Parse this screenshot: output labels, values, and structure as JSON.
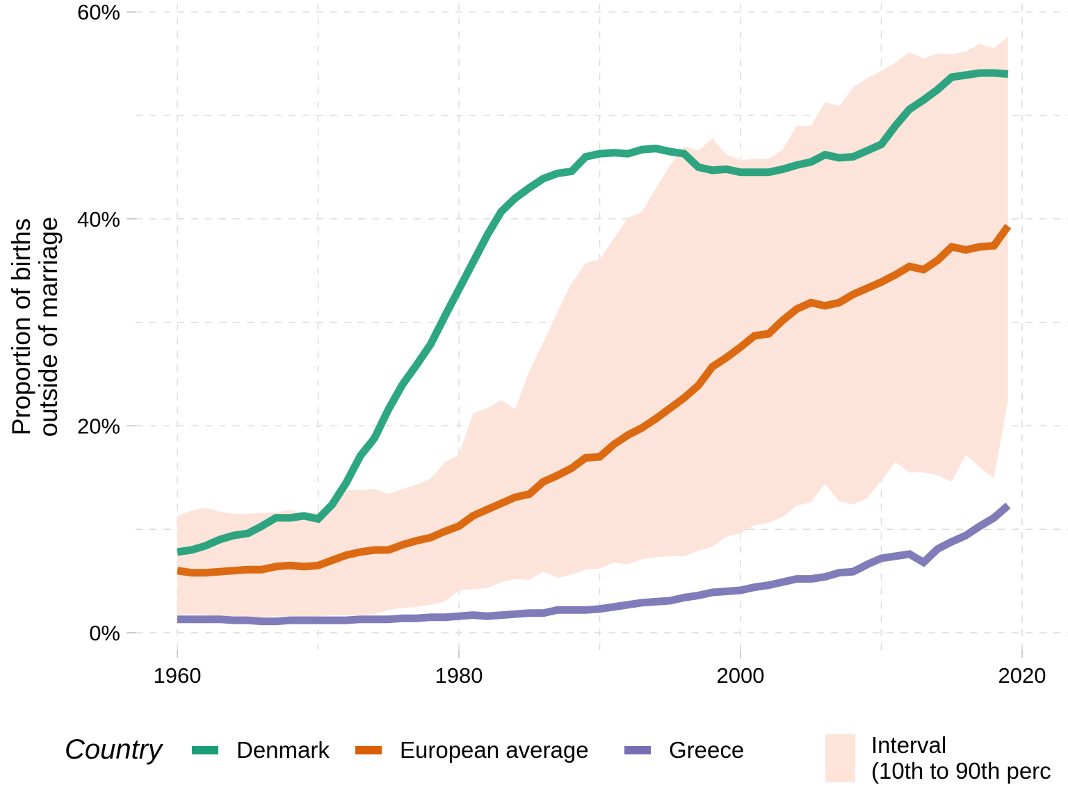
{
  "chart_data": {
    "type": "line",
    "title": "",
    "xlabel": "",
    "ylabel": "Proportion of births\noutside of marriage",
    "ylabel_lines": [
      "Proportion of births",
      "outside of marriage"
    ],
    "xlim": [
      1956,
      2023
    ],
    "ylim": [
      -2.5,
      60
    ],
    "x_ticks": [
      1960,
      1980,
      2000,
      2020
    ],
    "x_tick_labels": [
      "1960",
      "1980",
      "2000",
      "2020"
    ],
    "x_minor_gridlines": [
      1970,
      1990,
      2010
    ],
    "y_ticks": [
      0,
      20,
      40,
      60
    ],
    "y_tick_labels": [
      "0%",
      "20%",
      "40%",
      "60%"
    ],
    "y_minor_gridlines": [
      10,
      30,
      50
    ],
    "grid": true,
    "legend_placement": "bottom",
    "legend_title": "Country",
    "x": [
      1960,
      1961,
      1962,
      1963,
      1964,
      1965,
      1966,
      1967,
      1968,
      1969,
      1970,
      1971,
      1972,
      1973,
      1974,
      1975,
      1976,
      1977,
      1978,
      1979,
      1980,
      1981,
      1982,
      1983,
      1984,
      1985,
      1986,
      1987,
      1988,
      1989,
      1990,
      1991,
      1992,
      1993,
      1994,
      1995,
      1996,
      1997,
      1998,
      1999,
      2000,
      2001,
      2002,
      2003,
      2004,
      2005,
      2006,
      2007,
      2008,
      2009,
      2010,
      2011,
      2012,
      2013,
      2014,
      2015,
      2016,
      2017,
      2018,
      2019
    ],
    "series": [
      {
        "name": "Denmark",
        "color": "#1b9e77",
        "values": [
          7.8,
          8.0,
          8.4,
          9.0,
          9.4,
          9.6,
          10.3,
          11.1,
          11.1,
          11.3,
          11.0,
          12.4,
          14.5,
          17.1,
          18.8,
          21.6,
          24.0,
          25.9,
          27.9,
          30.6,
          33.2,
          35.8,
          38.4,
          40.7,
          42.0,
          43.0,
          43.9,
          44.4,
          44.6,
          46.0,
          46.3,
          46.4,
          46.3,
          46.7,
          46.8,
          46.5,
          46.3,
          45.0,
          44.7,
          44.8,
          44.5,
          44.5,
          44.5,
          44.8,
          45.2,
          45.5,
          46.2,
          45.9,
          46.0,
          46.6,
          47.2,
          49.0,
          50.6,
          51.5,
          52.5,
          53.7,
          53.9,
          54.1,
          54.1,
          54.0
        ]
      },
      {
        "name": "European average",
        "color": "#d95f02",
        "values": [
          6.0,
          5.8,
          5.8,
          5.9,
          6.0,
          6.1,
          6.1,
          6.4,
          6.5,
          6.4,
          6.5,
          7.0,
          7.5,
          7.8,
          8.0,
          8.0,
          8.5,
          8.9,
          9.2,
          9.8,
          10.3,
          11.3,
          11.9,
          12.5,
          13.1,
          13.4,
          14.6,
          15.2,
          15.9,
          16.9,
          17.0,
          18.2,
          19.1,
          19.8,
          20.7,
          21.7,
          22.7,
          23.9,
          25.7,
          26.6,
          27.6,
          28.7,
          28.9,
          30.2,
          31.3,
          31.9,
          31.6,
          31.9,
          32.7,
          33.3,
          33.9,
          34.6,
          35.4,
          35.1,
          36.0,
          37.3,
          37.0,
          37.3,
          37.4,
          39.3
        ]
      },
      {
        "name": "Greece",
        "color": "#7570b3",
        "values": [
          1.3,
          1.3,
          1.3,
          1.3,
          1.2,
          1.2,
          1.1,
          1.1,
          1.2,
          1.2,
          1.2,
          1.2,
          1.2,
          1.3,
          1.3,
          1.3,
          1.4,
          1.4,
          1.5,
          1.5,
          1.6,
          1.7,
          1.6,
          1.7,
          1.8,
          1.9,
          1.9,
          2.2,
          2.2,
          2.2,
          2.3,
          2.5,
          2.7,
          2.9,
          3.0,
          3.1,
          3.4,
          3.6,
          3.9,
          4.0,
          4.1,
          4.4,
          4.6,
          4.9,
          5.2,
          5.2,
          5.4,
          5.8,
          5.9,
          6.6,
          7.2,
          7.4,
          7.6,
          6.8,
          8.1,
          8.8,
          9.4,
          10.3,
          11.1,
          12.3
        ]
      }
    ],
    "interval": {
      "name": "Interval\n(10th to 90th perc",
      "label_lines": [
        "Interval",
        "(10th to 90th perc"
      ],
      "color": "#fde3d8",
      "upper": [
        11.3,
        11.8,
        12.1,
        11.7,
        11.5,
        11.5,
        11.6,
        11.6,
        11.9,
        11.5,
        11.6,
        12.0,
        13.8,
        13.8,
        13.9,
        13.4,
        13.9,
        14.3,
        14.9,
        16.5,
        17.2,
        21.2,
        21.7,
        22.5,
        21.6,
        25.3,
        28.1,
        31.0,
        33.8,
        35.7,
        36.1,
        38.1,
        40.1,
        40.7,
        43.0,
        45.2,
        47.0,
        46.6,
        47.8,
        46.2,
        45.7,
        45.8,
        45.8,
        46.7,
        49.0,
        49.0,
        51.3,
        50.9,
        52.7,
        53.6,
        54.3,
        55.1,
        56.1,
        55.5,
        56.0,
        55.9,
        56.2,
        56.9,
        56.5,
        57.6
      ],
      "lower": [
        1.7,
        1.8,
        1.7,
        1.6,
        1.6,
        1.5,
        1.5,
        1.6,
        1.6,
        1.5,
        1.6,
        1.7,
        1.7,
        1.7,
        1.8,
        2.2,
        2.4,
        2.5,
        2.7,
        3.0,
        4.1,
        4.2,
        4.3,
        4.9,
        5.2,
        5.1,
        5.9,
        5.3,
        5.6,
        6.1,
        6.2,
        6.8,
        6.6,
        7.1,
        7.3,
        7.4,
        7.4,
        7.9,
        8.3,
        9.3,
        9.6,
        10.4,
        10.6,
        11.2,
        12.3,
        12.6,
        14.4,
        12.7,
        12.4,
        13.0,
        14.7,
        16.5,
        15.5,
        15.5,
        15.2,
        14.6,
        17.2,
        16.0,
        14.9,
        22.5
      ]
    }
  },
  "legend": {
    "title": "Country",
    "items": [
      {
        "label": "Denmark",
        "color": "#1b9e77"
      },
      {
        "label": "European average",
        "color": "#d95f02"
      },
      {
        "label": "Greece",
        "color": "#7570b3"
      }
    ],
    "fill": {
      "line1": "Interval",
      "line2": "(10th to 90th perc",
      "color": "#fde3d8"
    }
  }
}
